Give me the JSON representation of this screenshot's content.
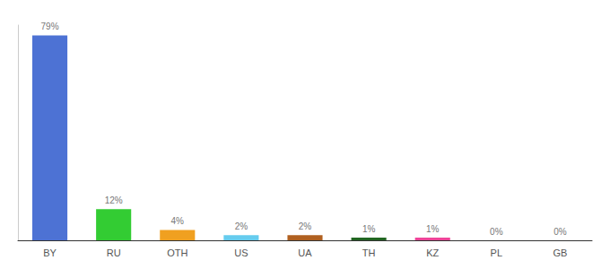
{
  "chart_data": {
    "type": "bar",
    "categories": [
      "BY",
      "RU",
      "OTH",
      "US",
      "UA",
      "TH",
      "KZ",
      "PL",
      "GB"
    ],
    "values": [
      79,
      12,
      4,
      2,
      2,
      1,
      1,
      0,
      0
    ],
    "value_labels": [
      "79%",
      "12%",
      "4%",
      "2%",
      "2%",
      "1%",
      "1%",
      "0%",
      "0%"
    ],
    "colors": [
      "#4d72d4",
      "#33cc33",
      "#f0a020",
      "#66ccee",
      "#b06020",
      "#226622",
      "#ee4499",
      "#aaaaaa",
      "#aaaaaa"
    ],
    "ylim": [
      0,
      83
    ],
    "grid": false,
    "data_labels": true,
    "tick_labels": "x"
  }
}
